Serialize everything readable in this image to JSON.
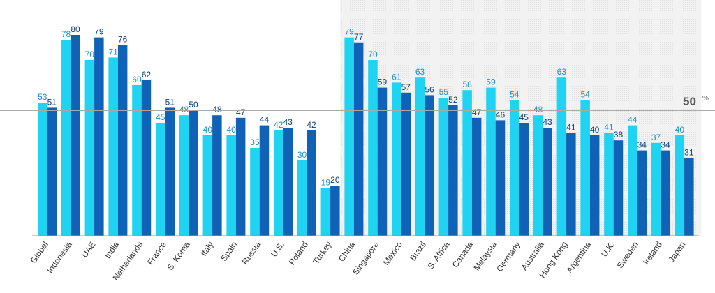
{
  "chart_data": {
    "type": "bar",
    "title": "",
    "xlabel": "",
    "ylabel": "",
    "ylim": [
      0,
      100
    ],
    "grid": false,
    "reference_line": {
      "value": 50,
      "label": "50",
      "unit": "%"
    },
    "categories": [
      "Global",
      "Indonesia",
      "UAE",
      "India",
      "Netherlands",
      "France",
      "S. Korea",
      "Italy",
      "Spain",
      "Russia",
      "U.S.",
      "Poland",
      "Turkey",
      "China",
      "Singapore",
      "Mexico",
      "Brazil",
      "S. Africa",
      "Canada",
      "Malaysia",
      "Germany",
      "Australia",
      "Hong Kong",
      "Argentina",
      "U.K.",
      "Sweden",
      "Ireland",
      "Japan"
    ],
    "series": [
      {
        "values": [
          53,
          78,
          70,
          71,
          60,
          45,
          48,
          40,
          40,
          35,
          42,
          30,
          19,
          79,
          70,
          61,
          63,
          55,
          58,
          59,
          54,
          48,
          63,
          54,
          41,
          44,
          37,
          40
        ]
      },
      {
        "values": [
          51,
          80,
          79,
          76,
          62,
          51,
          50,
          48,
          47,
          44,
          43,
          42,
          20,
          77,
          59,
          57,
          56,
          52,
          47,
          46,
          45,
          43,
          41,
          40,
          38,
          34,
          34,
          31
        ]
      }
    ],
    "highlighted_region": {
      "from_category": "China",
      "to_category": "Japan"
    }
  },
  "colors": {
    "series_1": "#1fd3f2",
    "series_2": "#0f62b5",
    "series_1_label": "#1b8fd0",
    "series_2_label": "#0b3f7a",
    "reference_line": "#a9a9a9",
    "shaded_region": "#efefef",
    "axis": "#9a9a9a"
  }
}
